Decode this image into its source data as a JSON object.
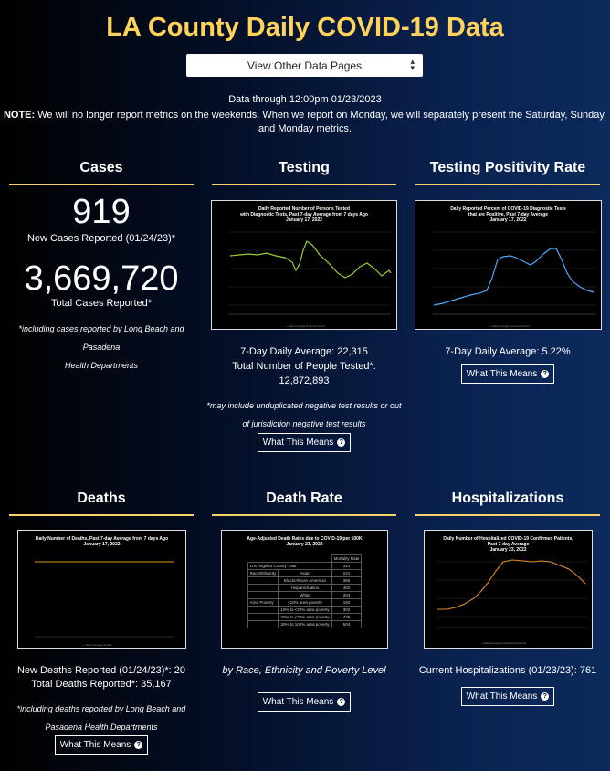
{
  "header": {
    "title": "LA County Daily COVID-19 Data",
    "select_label": "View Other Data Pages"
  },
  "notes": {
    "data_through": "Data through 12:00pm 01/23/2023",
    "note_bold": "NOTE:",
    "note_text1": " We will no longer report metrics on the weekends. When we report on Monday, we will separately present the Saturday, Sunday,",
    "note_text2": "and Monday metrics."
  },
  "cases": {
    "heading": "Cases",
    "new_count": "919",
    "new_label": "New Cases Reported (01/24/23)*",
    "total_count": "3,669,720",
    "total_label": "Total Cases Reported*",
    "footnote1": "*including cases reported by Long Beach and Pasadena",
    "footnote2": "Health Departments"
  },
  "testing": {
    "heading": "Testing",
    "chart_title1": "Daily Reported Number of Persons Tested",
    "chart_title2": "with Diagnostic Tests, Past 7-day Average from 7 days Ago",
    "chart_title3": "January 17, 2022",
    "avg": "7-Day Daily Average: 22,315",
    "total_label": "Total Number of People Tested*:",
    "total_value": "12,872,893",
    "footnote1": "*may include unduplicated negative test results or out",
    "footnote2": "of jurisdiction negative test results",
    "button": "What This Means"
  },
  "positivity": {
    "heading": "Testing Positivity Rate",
    "chart_title1": "Daily Reported Percent of COVID-19 Diagnostic Tests",
    "chart_title2": "that are Positive, Past 7-day Average",
    "chart_title3": "January 17, 2022",
    "avg": "7-Day Daily Average: 5.22%",
    "button": "What This Means"
  },
  "deaths": {
    "heading": "Deaths",
    "chart_title1": "Daily Number of Deaths, Past 7-day Average from 7 days Ago",
    "chart_title2": "January 17, 2022",
    "new_label": "New Deaths Reported (01/24/23)*: 20",
    "total_label": "Total Deaths Reported*: 35,167",
    "footnote1": "*including deaths reported by Long Beach and",
    "footnote2": "Pasadena Health Departments",
    "button": "What This Means"
  },
  "death_rate": {
    "heading": "Death Rate",
    "chart_title1": "Age-Adjusted Death Rates due to COVID-19 per 100K",
    "chart_title2": "January 23, 2022",
    "table_header": "Mortality Rate",
    "table_rows": [
      {
        "group": "Los Angeles County Total",
        "sub": "",
        "value": "321"
      },
      {
        "group": "Race/Ethnicity",
        "sub": "Asian",
        "value": "221"
      },
      {
        "group": "",
        "sub": "Black/African American",
        "value": "365"
      },
      {
        "group": "",
        "sub": "Hispanic/Latino",
        "value": "482"
      },
      {
        "group": "",
        "sub": "White",
        "value": "204"
      },
      {
        "group": "Area Poverty",
        "sub": "<10% area poverty",
        "value": "192"
      },
      {
        "group": "",
        "sub": "10% to <20% area poverty",
        "value": "302"
      },
      {
        "group": "",
        "sub": "20% to <30% area poverty",
        "value": "429"
      },
      {
        "group": "",
        "sub": "30% to 100% area poverty",
        "value": "504"
      }
    ],
    "caption": "by Race, Ethnicity and Poverty Level",
    "button": "What This Means"
  },
  "hospitalizations": {
    "heading": "Hospitalizations",
    "chart_title1": "Daily Number of Hospitalized COVID-19 Confirmed Patients,",
    "chart_title2": "Past 7-day Average",
    "chart_title3": "January 23, 2022",
    "current": "Current Hospitalizations (01/23/23): 761",
    "button": "What This Means"
  },
  "colors": {
    "accent": "#ffd35a",
    "testing_line": "#9acd32",
    "positivity_line": "#4ea6ff",
    "hosp_line": "#e08a2c",
    "deaths_line": "#d4a017"
  }
}
